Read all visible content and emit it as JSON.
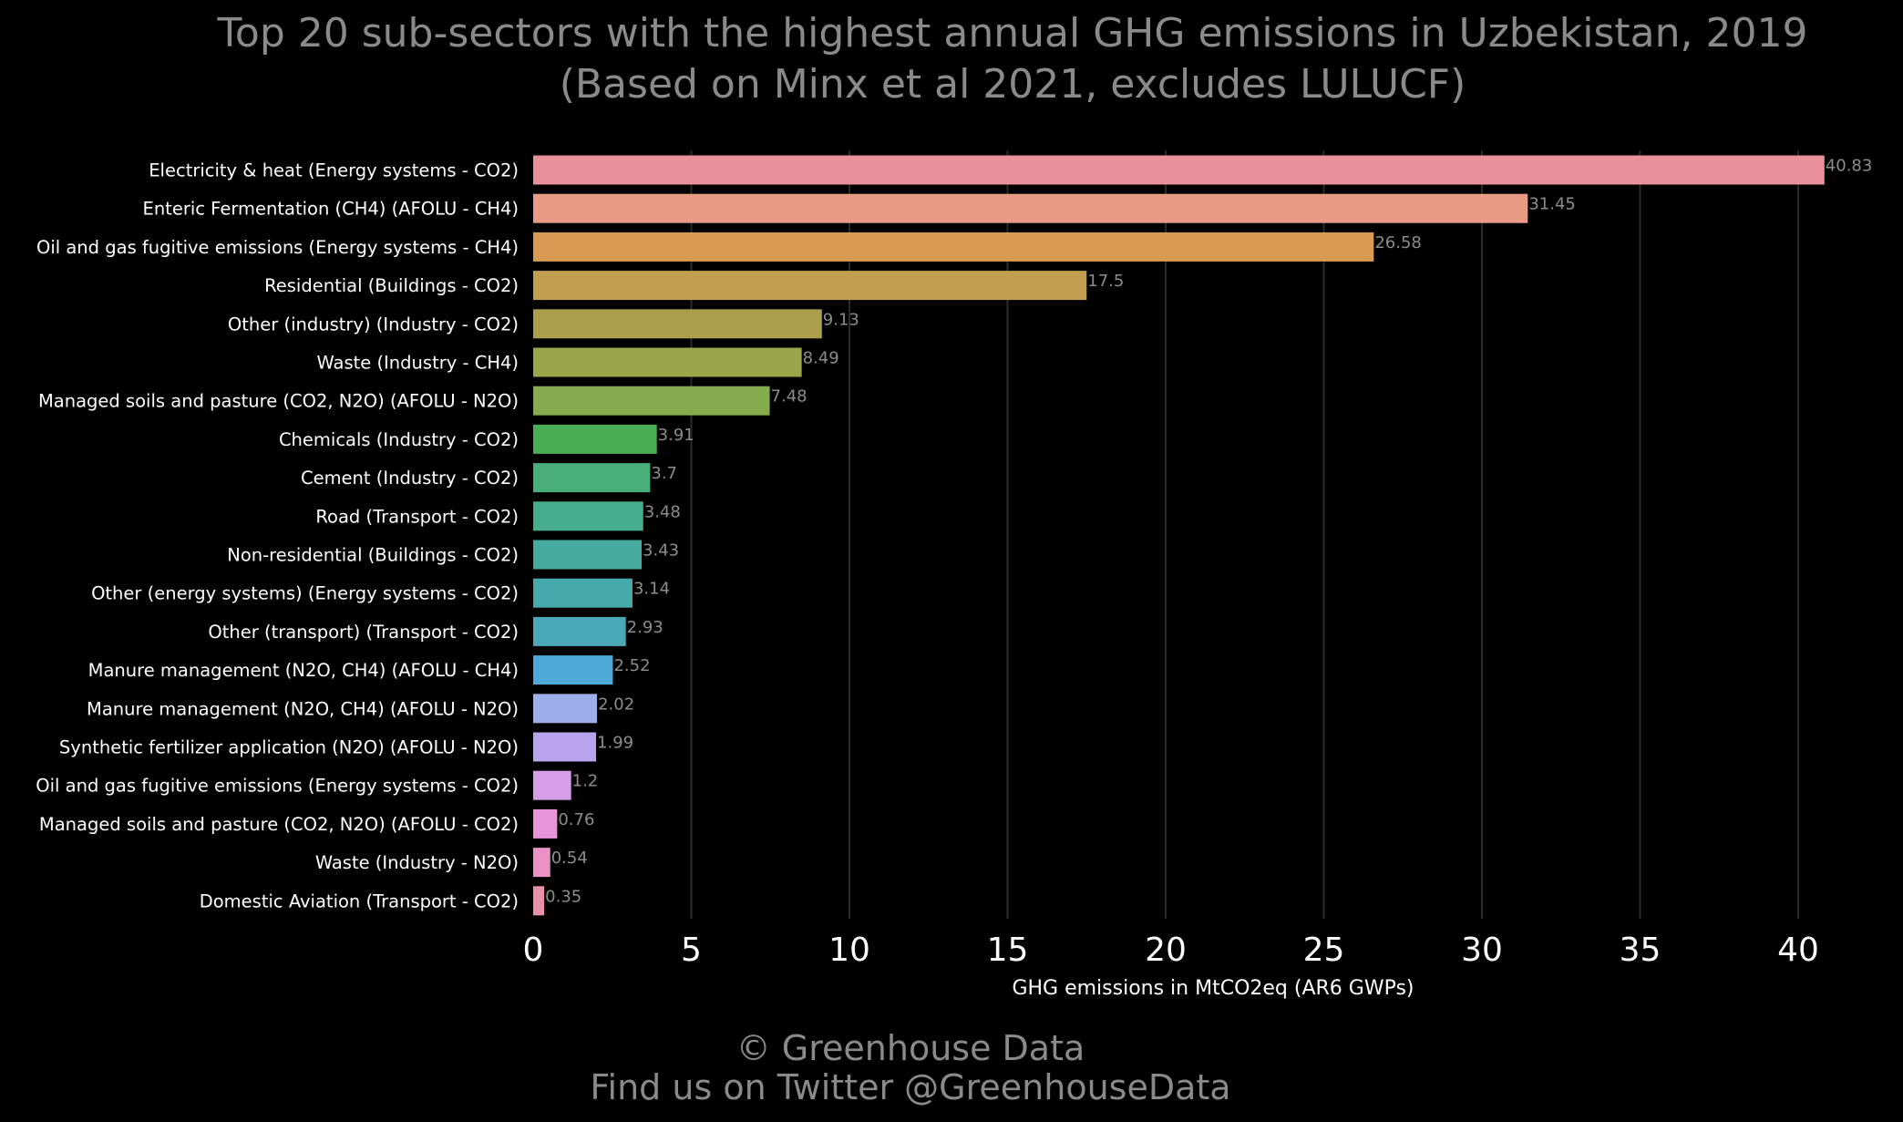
{
  "chart_data": {
    "type": "bar",
    "orientation": "horizontal",
    "title": "Top 20 sub-sectors with the highest annual GHG emissions in Uzbekistan, 2019",
    "subtitle": "(Based on Minx et al 2021, excludes LULUCF)",
    "xlabel": "GHG emissions in MtCO2eq (AR6 GWPs)",
    "ylabel": "",
    "xlim": [
      0,
      41.5
    ],
    "xticks": [
      0,
      5,
      10,
      15,
      20,
      25,
      30,
      35,
      40
    ],
    "grid": "vertical",
    "categories": [
      "Electricity & heat (Energy systems - CO2)",
      "Enteric Fermentation (CH4) (AFOLU - CH4)",
      "Oil and gas fugitive emissions (Energy systems - CH4)",
      "Residential (Buildings - CO2)",
      "Other (industry) (Industry - CO2)",
      "Waste (Industry - CH4)",
      "Managed soils and pasture (CO2, N2O) (AFOLU - N2O)",
      "Chemicals (Industry - CO2)",
      "Cement (Industry - CO2)",
      "Road (Transport - CO2)",
      "Non-residential (Buildings - CO2)",
      "Other (energy systems) (Energy systems - CO2)",
      "Other (transport) (Transport - CO2)",
      "Manure management (N2O, CH4) (AFOLU - CH4)",
      "Manure management (N2O, CH4) (AFOLU - N2O)",
      "Synthetic fertilizer application (N2O) (AFOLU - N2O)",
      "Oil and gas fugitive emissions (Energy systems - CO2)",
      "Managed soils and pasture (CO2, N2O) (AFOLU - CO2)",
      "Waste (Industry - N2O)",
      "Domestic Aviation (Transport - CO2)"
    ],
    "values": [
      40.83,
      31.45,
      26.58,
      17.5,
      9.13,
      8.49,
      7.48,
      3.91,
      3.7,
      3.48,
      3.43,
      3.14,
      2.93,
      2.52,
      2.02,
      1.99,
      1.2,
      0.76,
      0.54,
      0.35
    ],
    "value_labels": [
      "40.83",
      "31.45",
      "26.58",
      "17.5",
      "9.13",
      "8.49",
      "7.48",
      "3.91",
      "3.7",
      "3.48",
      "3.43",
      "3.14",
      "2.93",
      "2.52",
      "2.02",
      "1.99",
      "1.2",
      "0.76",
      "0.54",
      "0.35"
    ],
    "colors": [
      "#e8919b",
      "#e89a84",
      "#d99a52",
      "#c29f50",
      "#ab9f4c",
      "#9aa64c",
      "#84ab4c",
      "#4aae55",
      "#48ae78",
      "#46ae8c",
      "#47aa9e",
      "#48a9ab",
      "#4aa8b8",
      "#4fa9d8",
      "#9daeea",
      "#b9a5ee",
      "#d79ee9",
      "#e894d9",
      "#ea92c3",
      "#e98fb0"
    ]
  },
  "credits": {
    "line1": "© Greenhouse Data",
    "line2": "Find us on Twitter @GreenhouseData"
  }
}
